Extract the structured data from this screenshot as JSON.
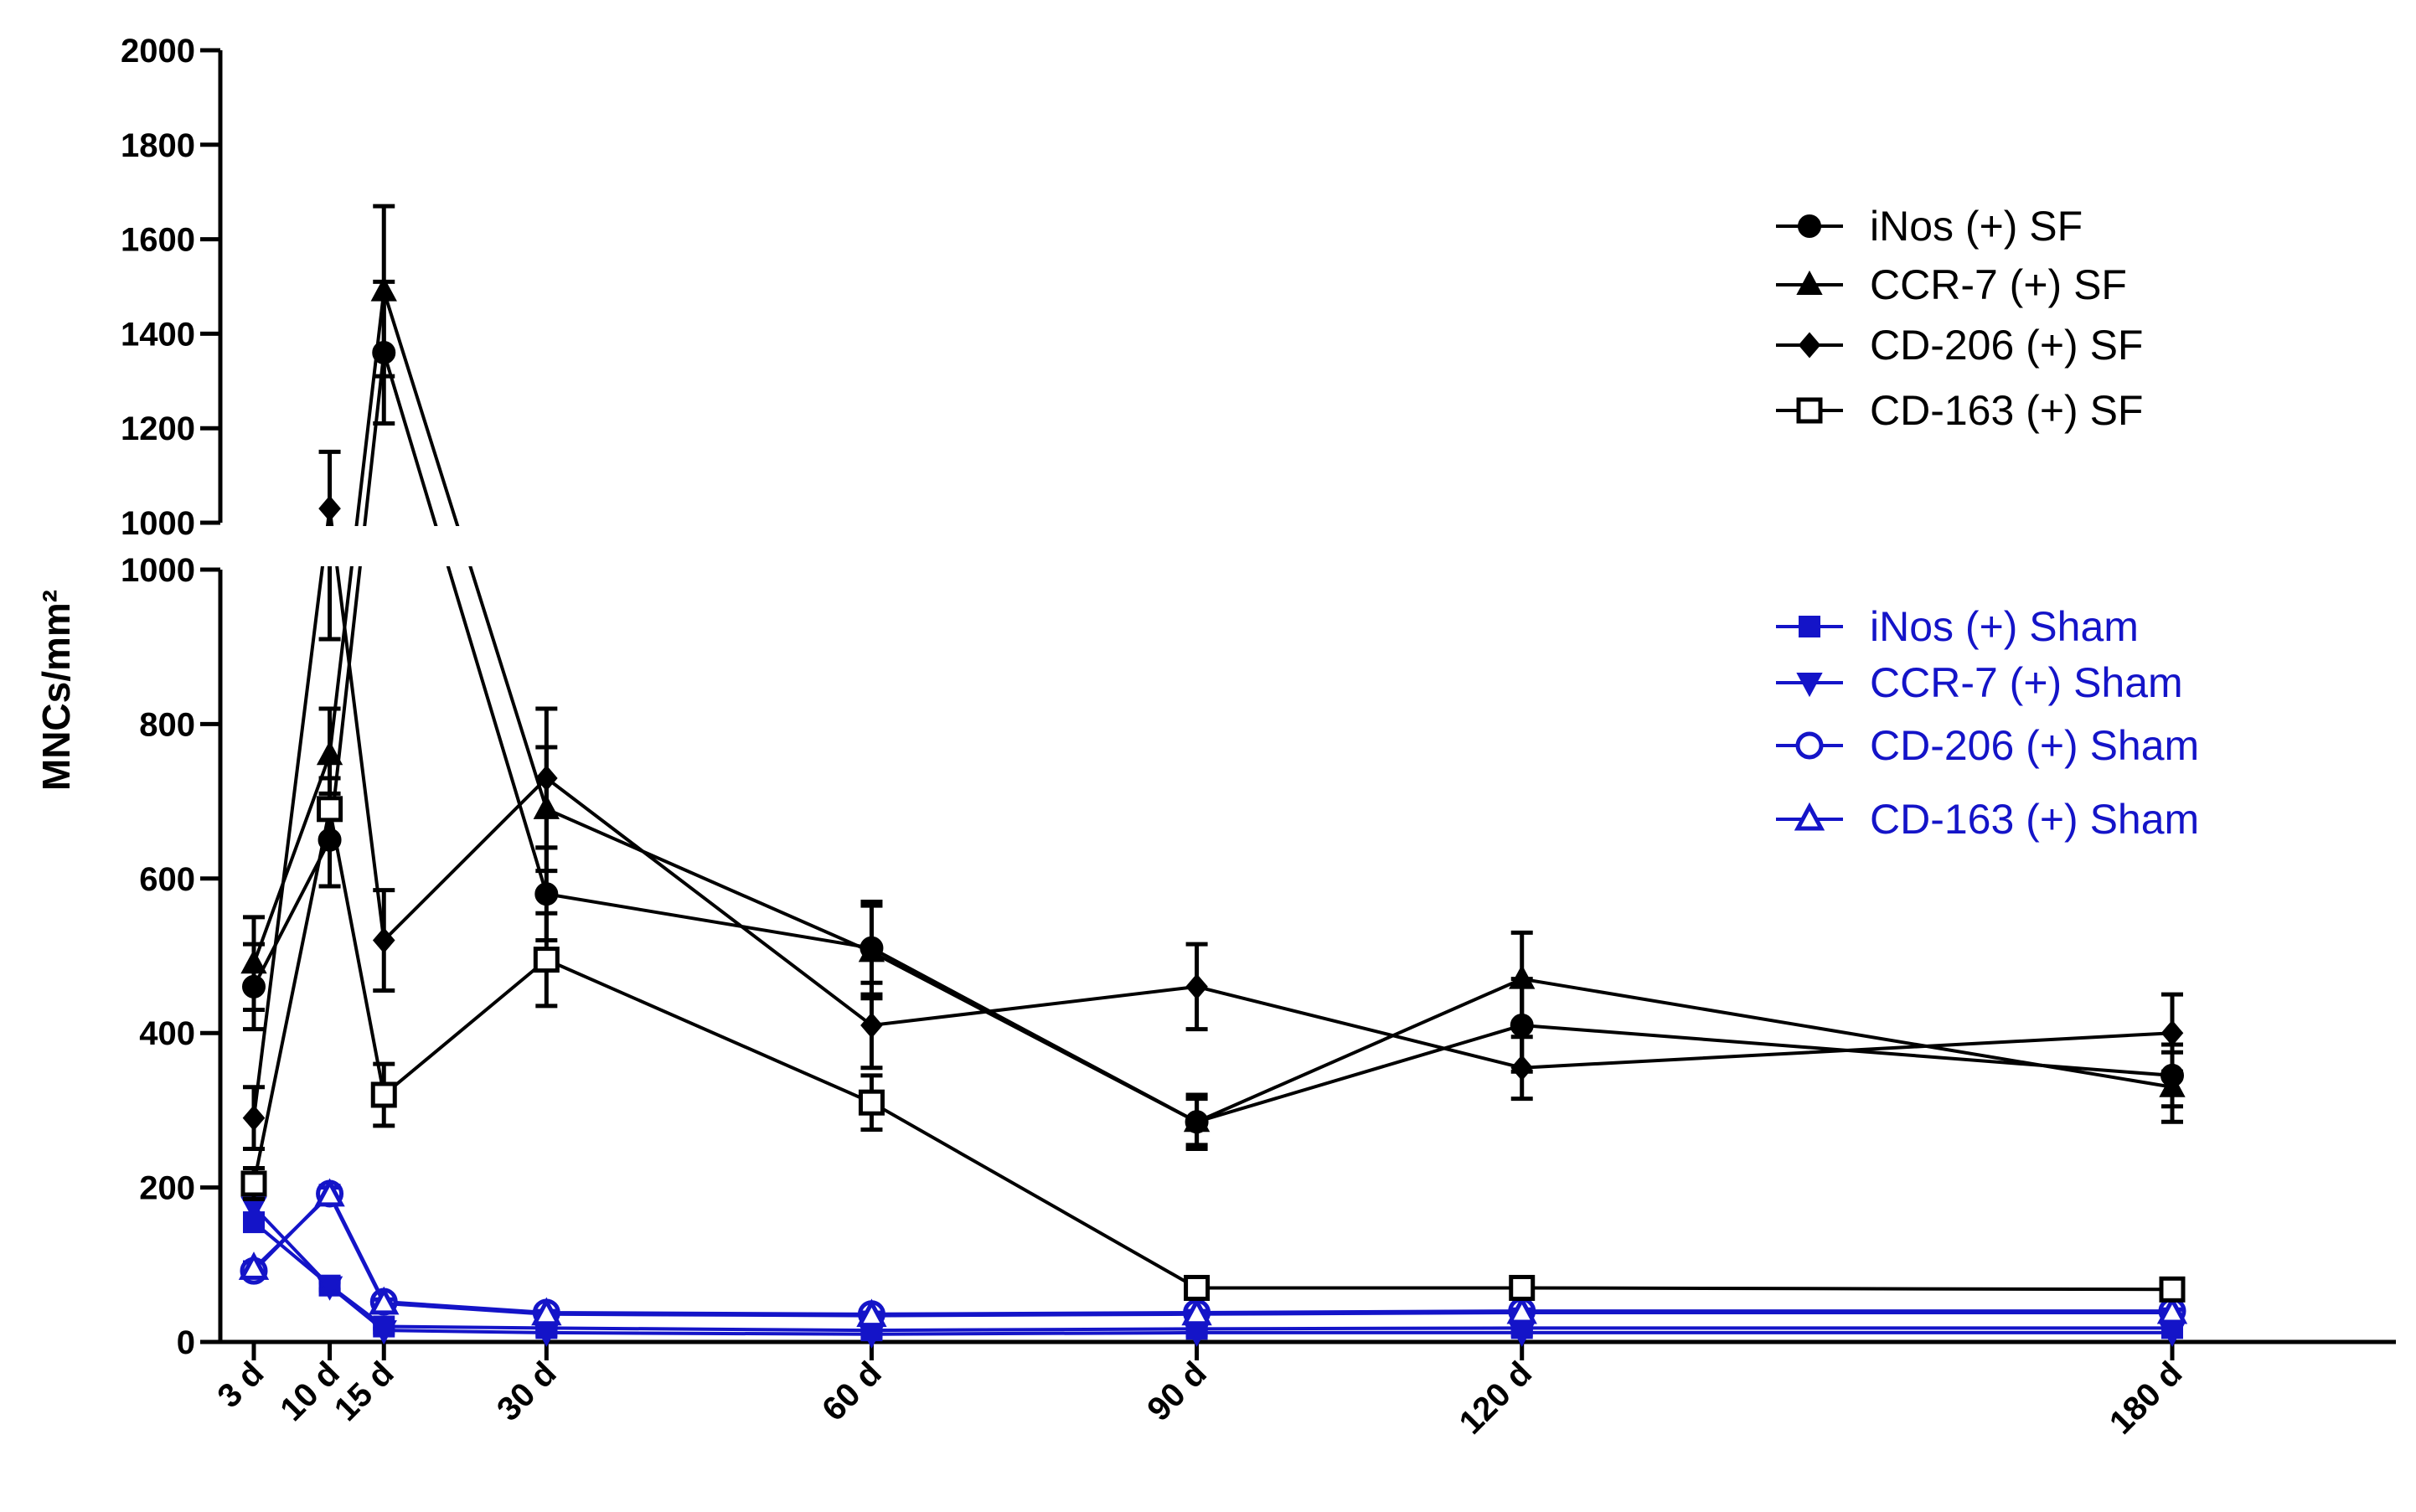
{
  "chart_data": {
    "type": "line",
    "title": "",
    "xlabel": "",
    "ylabel": "MNCs/mm²",
    "y_axis_break": true,
    "y_lower_ylim": [
      0,
      1000
    ],
    "y_upper_ylim": [
      1000,
      2000
    ],
    "y_lower_ticks": [
      0,
      200,
      400,
      600,
      800,
      1000
    ],
    "y_upper_ticks": [
      1000,
      1200,
      1400,
      1600,
      1800,
      2000
    ],
    "x": [
      3,
      10,
      15,
      30,
      60,
      90,
      120,
      180
    ],
    "xlim": [
      3,
      200
    ],
    "x_tick_labels": [
      "3 d",
      "10 d",
      "15 d",
      "30 d",
      "60 d",
      "90 d",
      "120 d",
      "180 d"
    ],
    "legend_position": "top-right",
    "series": [
      {
        "name": "iNos (+) SF",
        "color": "#000000",
        "marker": "circle",
        "filled": true,
        "values": [
          460,
          650,
          1360,
          580,
          510,
          285,
          410,
          345
        ],
        "errors": [
          55,
          60,
          150,
          60,
          60,
          30,
          60,
          40
        ]
      },
      {
        "name": "CCR-7 (+) SF",
        "color": "#000000",
        "marker": "triangle-up",
        "filled": true,
        "values": [
          490,
          760,
          1490,
          690,
          505,
          285,
          470,
          330
        ],
        "errors": [
          60,
          60,
          180,
          80,
          60,
          35,
          60,
          45
        ]
      },
      {
        "name": "CD-206 (+) SF",
        "color": "#000000",
        "marker": "diamond",
        "filled": true,
        "values": [
          290,
          1030,
          520,
          730,
          410,
          460,
          355,
          400
        ],
        "errors": [
          40,
          120,
          65,
          90,
          55,
          55,
          40,
          50
        ]
      },
      {
        "name": "CD-163 (+) SF",
        "color": "#000000",
        "marker": "square",
        "filled": false,
        "values": [
          205,
          690,
          320,
          495,
          310,
          70,
          70,
          68
        ],
        "errors": [
          20,
          40,
          40,
          60,
          35,
          8,
          8,
          8
        ]
      },
      {
        "name": "iNos (+) Sham",
        "color": "#1414c8",
        "marker": "square",
        "filled": true,
        "values": [
          155,
          73,
          20,
          18,
          15,
          17,
          18,
          18
        ],
        "errors": [
          10,
          5,
          3,
          3,
          3,
          3,
          3,
          3
        ]
      },
      {
        "name": "CCR-7 (+) Sham",
        "color": "#1414c8",
        "marker": "triangle-down",
        "filled": true,
        "values": [
          175,
          72,
          15,
          12,
          10,
          12,
          12,
          12
        ],
        "errors": [
          10,
          5,
          3,
          3,
          3,
          3,
          3,
          3
        ]
      },
      {
        "name": "CD-206 (+) Sham",
        "color": "#1414c8",
        "marker": "circle",
        "filled": false,
        "values": [
          92,
          192,
          52,
          38,
          36,
          38,
          40,
          40
        ],
        "errors": [
          8,
          10,
          5,
          4,
          4,
          4,
          4,
          4
        ]
      },
      {
        "name": "CD-163 (+) Sham",
        "color": "#1414c8",
        "marker": "triangle-up",
        "filled": false,
        "values": [
          95,
          190,
          50,
          36,
          34,
          36,
          38,
          38
        ],
        "errors": [
          8,
          10,
          5,
          4,
          4,
          4,
          4,
          4
        ]
      }
    ]
  }
}
